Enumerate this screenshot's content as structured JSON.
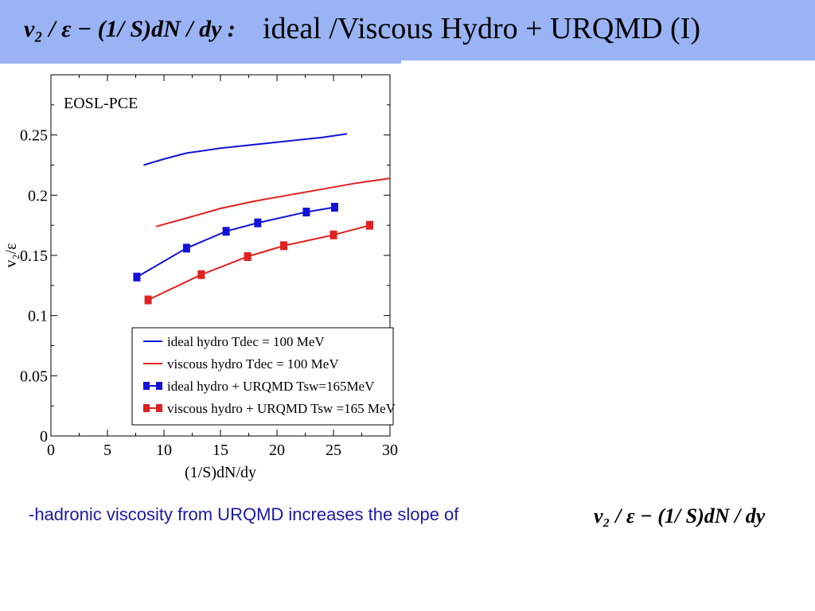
{
  "slide": {
    "title_formula": "v₂ / ε − (1/ S)dN / dy :",
    "title_text": "ideal /Viscous Hydro + URQMD (I)",
    "bullet_text": "-hadronic viscosity from URQMD increases the slope of",
    "bullet_formula": "v₂ / ε − (1/ S)dN / dy"
  },
  "chart_data": {
    "type": "line",
    "title": "",
    "annotation": "EOSL-PCE",
    "xlabel": "(1/S)dN/dy",
    "ylabel": "v₂/ε",
    "xlim": [
      0,
      30
    ],
    "ylim": [
      0,
      0.3
    ],
    "xticks": [
      0,
      5,
      10,
      15,
      20,
      25,
      30
    ],
    "yticks": [
      0,
      0.05,
      0.1,
      0.15,
      0.2,
      0.25
    ],
    "ytick_labels": [
      "0",
      "0.05",
      "0.1",
      "0.15",
      "0.2",
      "0.25"
    ],
    "grid": false,
    "legend_position": "bottom-right",
    "series": [
      {
        "name": "ideal hydro Tdec = 100 MeV",
        "color": "#1212d8",
        "markers": false,
        "x": [
          8.2,
          10,
          12,
          15,
          18,
          21,
          24,
          26.2
        ],
        "y": [
          0.225,
          0.23,
          0.235,
          0.239,
          0.242,
          0.245,
          0.248,
          0.251
        ]
      },
      {
        "name": "viscous hydro Tdec = 100 MeV",
        "color": "#e02020",
        "markers": false,
        "x": [
          9.3,
          12,
          15,
          18,
          21,
          24,
          27,
          30
        ],
        "y": [
          0.174,
          0.181,
          0.189,
          0.195,
          0.2,
          0.205,
          0.21,
          0.214
        ]
      },
      {
        "name": "ideal hydro + URQMD Tsw=165MeV",
        "color": "#1212d8",
        "markers": true,
        "x": [
          7.6,
          12,
          15.5,
          18.3,
          22.6,
          25.1
        ],
        "y": [
          0.132,
          0.156,
          0.17,
          0.177,
          0.186,
          0.19
        ]
      },
      {
        "name": "viscous hydro + URQMD Tsw =165 MeV",
        "color": "#e02020",
        "markers": true,
        "x": [
          8.6,
          13.3,
          17.4,
          20.6,
          25,
          28.2
        ],
        "y": [
          0.113,
          0.134,
          0.149,
          0.158,
          0.167,
          0.175
        ]
      }
    ]
  }
}
